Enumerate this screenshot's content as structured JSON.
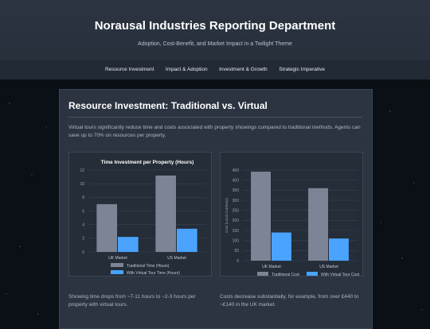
{
  "header": {
    "title": "Norausal Industries Reporting Department",
    "subtitle": "Adoption, Cost-Benefit, and Market Impact in a Twilight Theme"
  },
  "nav": [
    {
      "label": "Resource Investment"
    },
    {
      "label": "Impact & Adoption"
    },
    {
      "label": "Investment & Growth"
    },
    {
      "label": "Strategic Imperative"
    }
  ],
  "section": {
    "title": "Resource Investment: Traditional vs. Virtual",
    "intro": "Virtual tours significantly reduce time and costs associated with property showings compared to traditional methods. Agents can save up to 70% on resources per property."
  },
  "captions": {
    "time": "Showing time drops from ~7-11 hours to ~2-3 hours per property with virtual tours.",
    "cost": "Costs decrease substantially, for example, from over £440 to ~£140 in the UK market."
  },
  "colors": {
    "traditional": "#7b8595",
    "virtual": "#4aa3ff"
  },
  "chart_data": [
    {
      "type": "bar",
      "title": "Time Investment per Property (Hours)",
      "categories": [
        "UK Market",
        "US Market"
      ],
      "series": [
        {
          "name": "Traditional Time (Hours)",
          "values": [
            7,
            11.2
          ]
        },
        {
          "name": "With Virtual Tour Time (Hours)",
          "values": [
            2.2,
            3.4
          ]
        }
      ],
      "ylim": [
        0,
        12
      ],
      "yticks": [
        0,
        2,
        4,
        6,
        8,
        10,
        12
      ],
      "ylabel": "",
      "grid": true,
      "legend": "bottom"
    },
    {
      "type": "bar",
      "title": "",
      "categories": [
        "UK Market",
        "US Market"
      ],
      "series": [
        {
          "name": "Traditional Cost",
          "values": [
            442,
            360
          ]
        },
        {
          "name": "With Virtual Tour Cost",
          "values": [
            140,
            110
          ]
        }
      ],
      "ylim": [
        0,
        450
      ],
      "yticks": [
        0,
        50,
        100,
        150,
        200,
        250,
        300,
        350,
        400,
        450
      ],
      "ylabel": "Cost (Local Currency)",
      "grid": true,
      "legend": "bottom"
    }
  ]
}
